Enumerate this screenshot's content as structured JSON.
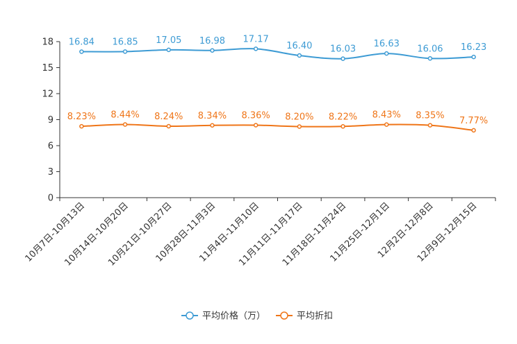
{
  "chart_data": {
    "type": "line",
    "categories": [
      "10月7日-10月13日",
      "10月14日-10月20日",
      "10月21日-10月27日",
      "10月28日-11月3日",
      "11月4日-11月10日",
      "11月11日-11月17日",
      "11月18日-11月24日",
      "11月25日-12月1日",
      "12月2日-12月8日",
      "12月9日-12月15日"
    ],
    "yticks": [
      "0",
      "3",
      "6",
      "9",
      "12",
      "15",
      "18"
    ],
    "ylim": [
      0,
      18
    ],
    "series": [
      {
        "name": "平均价格（万）",
        "color": "#3d9bd4",
        "values": [
          16.84,
          16.85,
          17.05,
          16.98,
          17.17,
          16.4,
          16.03,
          16.63,
          16.06,
          16.23
        ],
        "labels": [
          "16.84",
          "16.85",
          "17.05",
          "16.98",
          "17.17",
          "16.40",
          "16.03",
          "16.63",
          "16.06",
          "16.23"
        ]
      },
      {
        "name": "平均折扣",
        "color": "#ef7518",
        "values": [
          8.23,
          8.44,
          8.24,
          8.34,
          8.36,
          8.2,
          8.22,
          8.43,
          8.35,
          7.77
        ],
        "labels": [
          "8.23%",
          "8.44%",
          "8.24%",
          "8.34%",
          "8.36%",
          "8.20%",
          "8.22%",
          "8.43%",
          "8.35%",
          "7.77%"
        ]
      }
    ],
    "legend_position": "bottom-center",
    "grid": false
  }
}
